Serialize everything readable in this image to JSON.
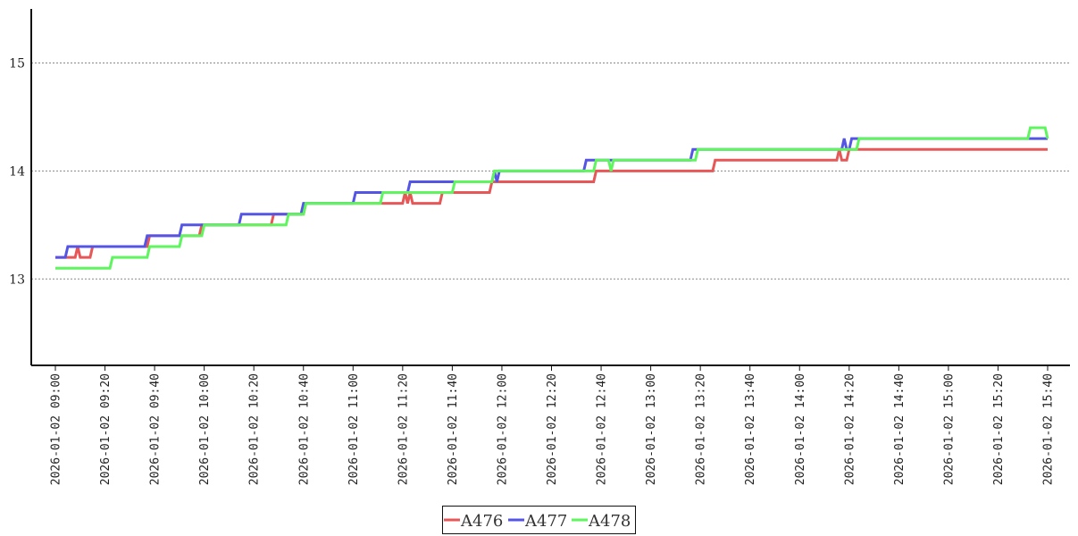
{
  "chart_data": {
    "type": "line",
    "title": "",
    "xlabel": "",
    "ylabel": "",
    "xlim": [
      "2026-01-02 09:00",
      "2026-01-02 15:40"
    ],
    "ylim": [
      12.2,
      15.5
    ],
    "yticks": [
      "13",
      "14",
      "15"
    ],
    "xticks": [
      "2026-01-02 09:00",
      "2026-01-02 09:20",
      "2026-01-02 09:40",
      "2026-01-02 10:00",
      "2026-01-02 10:20",
      "2026-01-02 10:40",
      "2026-01-02 11:00",
      "2026-01-02 11:20",
      "2026-01-02 11:40",
      "2026-01-02 12:00",
      "2026-01-02 12:20",
      "2026-01-02 12:40",
      "2026-01-02 13:00",
      "2026-01-02 13:20",
      "2026-01-02 13:40",
      "2026-01-02 14:00",
      "2026-01-02 14:20",
      "2026-01-02 14:40",
      "2026-01-02 15:00",
      "2026-01-02 15:20",
      "2026-01-02 15:40"
    ],
    "grid": "horizontal-dotted",
    "legend_position": "bottom-center",
    "series": [
      {
        "name": "A476",
        "color": "#e85757",
        "points": [
          [
            "09:00",
            13.2
          ],
          [
            "09:08",
            13.2
          ],
          [
            "09:09",
            13.3
          ],
          [
            "09:10",
            13.2
          ],
          [
            "09:14",
            13.2
          ],
          [
            "09:15",
            13.3
          ],
          [
            "09:37",
            13.3
          ],
          [
            "09:38",
            13.4
          ],
          [
            "09:58",
            13.4
          ],
          [
            "09:59",
            13.5
          ],
          [
            "10:27",
            13.5
          ],
          [
            "10:28",
            13.6
          ],
          [
            "10:40",
            13.6
          ],
          [
            "10:41",
            13.7
          ],
          [
            "11:20",
            13.7
          ],
          [
            "11:21",
            13.8
          ],
          [
            "11:22",
            13.7
          ],
          [
            "11:23",
            13.8
          ],
          [
            "11:24",
            13.7
          ],
          [
            "11:35",
            13.7
          ],
          [
            "11:36",
            13.8
          ],
          [
            "11:55",
            13.8
          ],
          [
            "11:56",
            13.9
          ],
          [
            "12:37",
            13.9
          ],
          [
            "12:38",
            14.0
          ],
          [
            "13:25",
            14.0
          ],
          [
            "13:26",
            14.1
          ],
          [
            "14:15",
            14.1
          ],
          [
            "14:16",
            14.2
          ],
          [
            "14:17",
            14.1
          ],
          [
            "14:19",
            14.1
          ],
          [
            "14:20",
            14.2
          ],
          [
            "15:40",
            14.2
          ]
        ]
      },
      {
        "name": "A477",
        "color": "#5555e5",
        "points": [
          [
            "09:00",
            13.2
          ],
          [
            "09:04",
            13.2
          ],
          [
            "09:05",
            13.3
          ],
          [
            "09:15",
            13.3
          ],
          [
            "09:36",
            13.3
          ],
          [
            "09:37",
            13.4
          ],
          [
            "09:50",
            13.4
          ],
          [
            "09:51",
            13.5
          ],
          [
            "10:00",
            13.5
          ],
          [
            "10:14",
            13.5
          ],
          [
            "10:15",
            13.6
          ],
          [
            "10:27",
            13.6
          ],
          [
            "10:39",
            13.6
          ],
          [
            "10:40",
            13.7
          ],
          [
            "11:00",
            13.7
          ],
          [
            "11:01",
            13.8
          ],
          [
            "11:22",
            13.8
          ],
          [
            "11:23",
            13.9
          ],
          [
            "11:56",
            13.9
          ],
          [
            "11:57",
            14.0
          ],
          [
            "11:58",
            13.9
          ],
          [
            "11:59",
            14.0
          ],
          [
            "12:33",
            14.0
          ],
          [
            "12:34",
            14.1
          ],
          [
            "13:16",
            14.1
          ],
          [
            "13:17",
            14.2
          ],
          [
            "14:17",
            14.2
          ],
          [
            "14:18",
            14.3
          ],
          [
            "14:19",
            14.2
          ],
          [
            "14:20",
            14.2
          ],
          [
            "14:21",
            14.3
          ],
          [
            "15:40",
            14.3
          ]
        ]
      },
      {
        "name": "A478",
        "color": "#5ef55e",
        "points": [
          [
            "09:00",
            13.1
          ],
          [
            "09:22",
            13.1
          ],
          [
            "09:23",
            13.2
          ],
          [
            "09:37",
            13.2
          ],
          [
            "09:38",
            13.3
          ],
          [
            "09:50",
            13.3
          ],
          [
            "09:51",
            13.4
          ],
          [
            "09:59",
            13.4
          ],
          [
            "10:00",
            13.5
          ],
          [
            "10:27",
            13.5
          ],
          [
            "10:33",
            13.5
          ],
          [
            "10:34",
            13.6
          ],
          [
            "10:40",
            13.6
          ],
          [
            "10:41",
            13.7
          ],
          [
            "11:11",
            13.7
          ],
          [
            "11:12",
            13.8
          ],
          [
            "11:40",
            13.8
          ],
          [
            "11:41",
            13.9
          ],
          [
            "11:56",
            13.9
          ],
          [
            "11:57",
            14.0
          ],
          [
            "12:37",
            14.0
          ],
          [
            "12:38",
            14.1
          ],
          [
            "12:43",
            14.1
          ],
          [
            "12:44",
            14.0
          ],
          [
            "12:45",
            14.1
          ],
          [
            "13:18",
            14.1
          ],
          [
            "13:19",
            14.2
          ],
          [
            "14:23",
            14.2
          ],
          [
            "14:24",
            14.3
          ],
          [
            "15:32",
            14.3
          ],
          [
            "15:33",
            14.4
          ],
          [
            "15:39",
            14.4
          ],
          [
            "15:40",
            14.3
          ]
        ]
      }
    ]
  }
}
